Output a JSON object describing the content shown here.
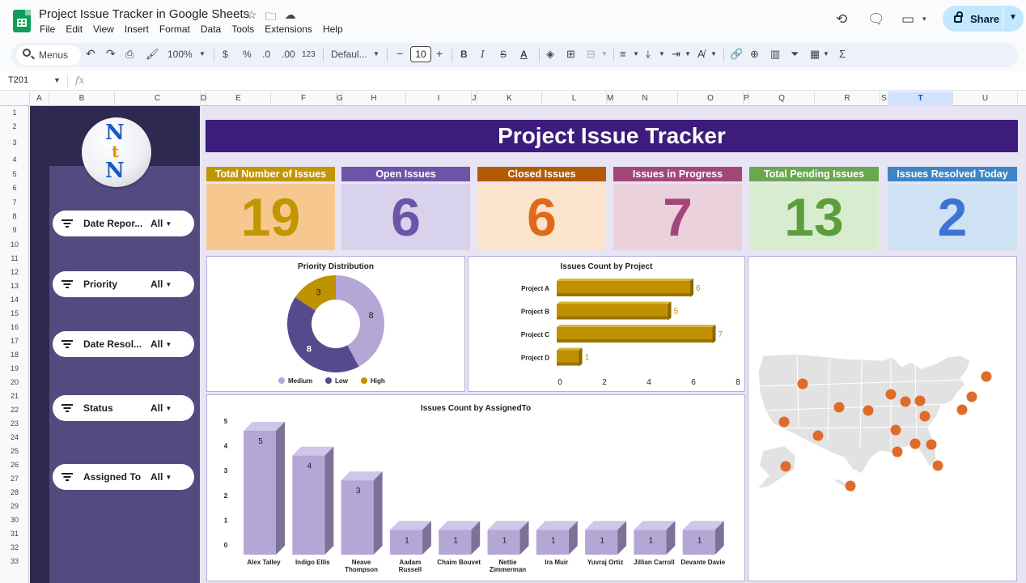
{
  "app": {
    "doc_title": "Project Issue Tracker in Google Sheets",
    "menu": [
      "File",
      "Edit",
      "View",
      "Insert",
      "Format",
      "Data",
      "Tools",
      "Extensions",
      "Help"
    ],
    "share_label": "Share"
  },
  "toolbar": {
    "search_label": "Menus",
    "zoom": "100%",
    "currency": "$",
    "percent": "%",
    "dec_decrease": ".0",
    "dec_increase": ".00",
    "number_format": "123",
    "font": "Defaul...",
    "font_size": "10"
  },
  "formula_bar": {
    "name_box": "T201",
    "fx": "fx",
    "content": ""
  },
  "columns": [
    "A",
    "B",
    "C",
    "D",
    "E",
    "F",
    "G",
    "H",
    "I",
    "J",
    "K",
    "L",
    "M",
    "N",
    "O",
    "P",
    "Q",
    "R",
    "S",
    "T",
    "U"
  ],
  "selected_column": "T",
  "rows": [
    "1",
    "2",
    "3",
    "4",
    "5",
    "6",
    "7",
    "8",
    "9",
    "10",
    "11",
    "12",
    "13",
    "14",
    "15",
    "16",
    "17",
    "18",
    "19",
    "20",
    "21",
    "22",
    "23",
    "24",
    "25",
    "26",
    "27",
    "28",
    "29",
    "30",
    "31",
    "32",
    "33"
  ],
  "dashboard": {
    "title": "Project Issue Tracker",
    "logo_letters": [
      "N",
      "t",
      "N"
    ],
    "slicers": [
      {
        "label": "Date Repor...",
        "value": "All"
      },
      {
        "label": "Priority",
        "value": "All"
      },
      {
        "label": "Date Resol...",
        "value": "All"
      },
      {
        "label": "Status",
        "value": "All"
      },
      {
        "label": "Assigned To",
        "value": "All"
      }
    ],
    "kpis": [
      {
        "label": "Total Number of Issues",
        "value": "19",
        "head_color": "#c29600",
        "box_color": "#f6c88f",
        "value_color": "#c29600"
      },
      {
        "label": "Open Issues",
        "value": "6",
        "head_color": "#6c54a8",
        "box_color": "#d9d2ec",
        "value_color": "#6c54a8"
      },
      {
        "label": "Closed Issues",
        "value": "6",
        "head_color": "#b35a06",
        "box_color": "#fbe3cc",
        "value_color": "#e06a1a"
      },
      {
        "label": "Issues in Progress",
        "value": "7",
        "head_color": "#a3477a",
        "box_color": "#ead1dc",
        "value_color": "#a3477a"
      },
      {
        "label": "Total Pending Issues",
        "value": "13",
        "head_color": "#6aa84f",
        "box_color": "#d8ecd0",
        "value_color": "#5c9e3c"
      },
      {
        "label": "Issues Resolved Today",
        "value": "2",
        "head_color": "#3d85c6",
        "box_color": "#cfe2f3",
        "value_color": "#3d74d4"
      }
    ]
  },
  "chart_data": [
    {
      "type": "pie",
      "title": "Priority Distribution",
      "categories": [
        "Medium",
        "Low",
        "High"
      ],
      "values": [
        8,
        8,
        3
      ],
      "colors": [
        "#b4a7d6",
        "#574a8c",
        "#bf9000"
      ],
      "legend": "bottom"
    },
    {
      "type": "bar",
      "orientation": "horizontal",
      "title": "Issues Count by Project",
      "categories": [
        "Project A",
        "Project B",
        "Project C",
        "Project D"
      ],
      "values": [
        6,
        5,
        7,
        1
      ],
      "xlim": [
        0,
        8
      ],
      "xticks": [
        "0",
        "2",
        "4",
        "6",
        "8"
      ],
      "color": "#bf9000"
    },
    {
      "type": "bar",
      "title": "Issues Count  by AssignedTo",
      "categories": [
        "Alex Talley",
        "Indigo Ellis",
        "Neave Thompson",
        "Aadam Russell",
        "Chaim Bouvet",
        "Nettie Zimmerman",
        "Ira Muir",
        "Yuvraj Ortiz",
        "Jillian Carroll",
        "Devante Davie"
      ],
      "category_lines": [
        [
          "Alex Talley"
        ],
        [
          "Indigo Ellis"
        ],
        [
          "Neave",
          "Thompson"
        ],
        [
          "Aadam",
          "Russell"
        ],
        [
          "Chaim Bouvet"
        ],
        [
          "Nettie",
          "Zimmerman"
        ],
        [
          "Ira Muir"
        ],
        [
          "Yuvraj Ortiz"
        ],
        [
          "Jillian Carroll"
        ],
        [
          "Devante Davie"
        ]
      ],
      "values": [
        5,
        4,
        3,
        1,
        1,
        1,
        1,
        1,
        1,
        1
      ],
      "ylim": [
        0,
        5
      ],
      "yticks": [
        "0",
        "1",
        "2",
        "3",
        "4",
        "5"
      ],
      "color": "#b4a7d6"
    }
  ],
  "map": {
    "region": "United States",
    "marker_color": "#e06a2a",
    "marker_count": 19
  }
}
